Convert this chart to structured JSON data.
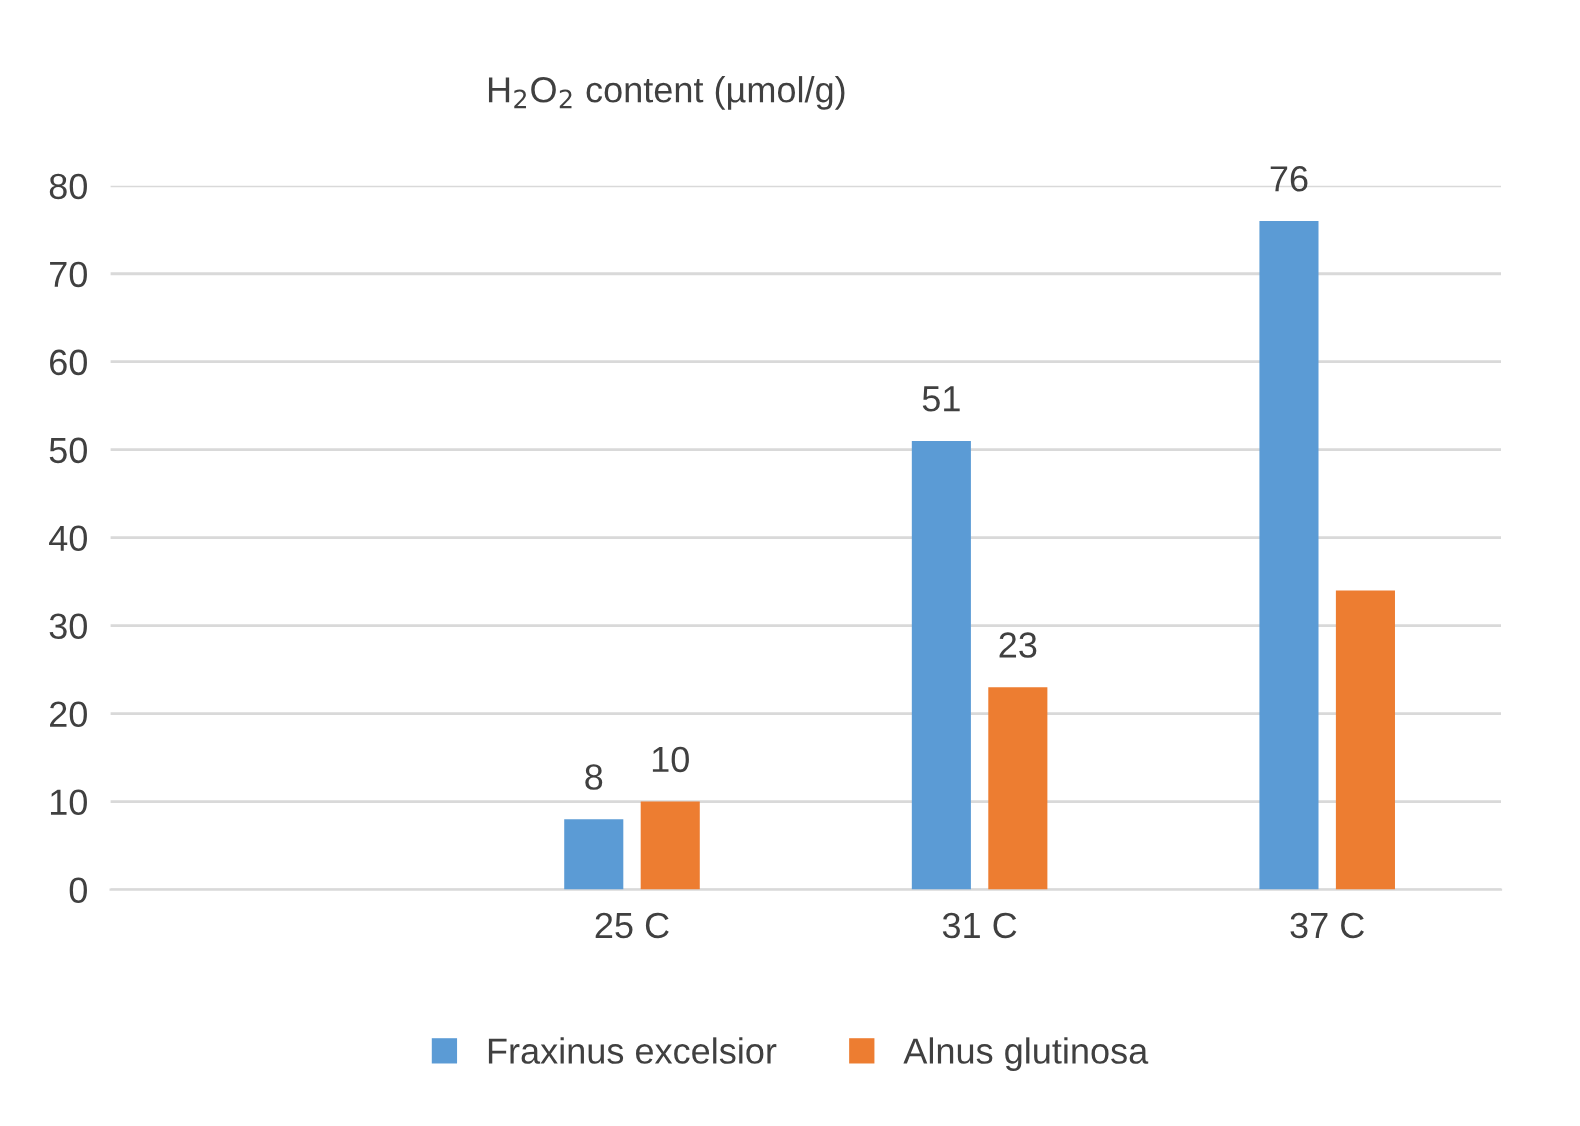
{
  "chart_data": {
    "type": "bar",
    "title": "H$_{2}$O$_{2}$ content (µmol/g)",
    "categories": [
      null,
      "25 C",
      "31 C",
      "37 C"
    ],
    "series": [
      {
        "name": "Fraxinus excelsior",
        "color": "#5b9bd5",
        "values": [
          null,
          8,
          51,
          76
        ],
        "value_labels": [
          null,
          "8",
          "51",
          "76"
        ]
      },
      {
        "name": "Alnus glutinosa",
        "color": "#ed7d31",
        "values": [
          null,
          10,
          23,
          34
        ],
        "value_labels": [
          null,
          "10",
          "23",
          null
        ]
      }
    ],
    "ylim": [
      0,
      80
    ],
    "yticks": [
      0,
      10,
      20,
      30,
      40,
      50,
      60,
      70,
      80
    ],
    "grid": "y",
    "legend": "bottom"
  }
}
